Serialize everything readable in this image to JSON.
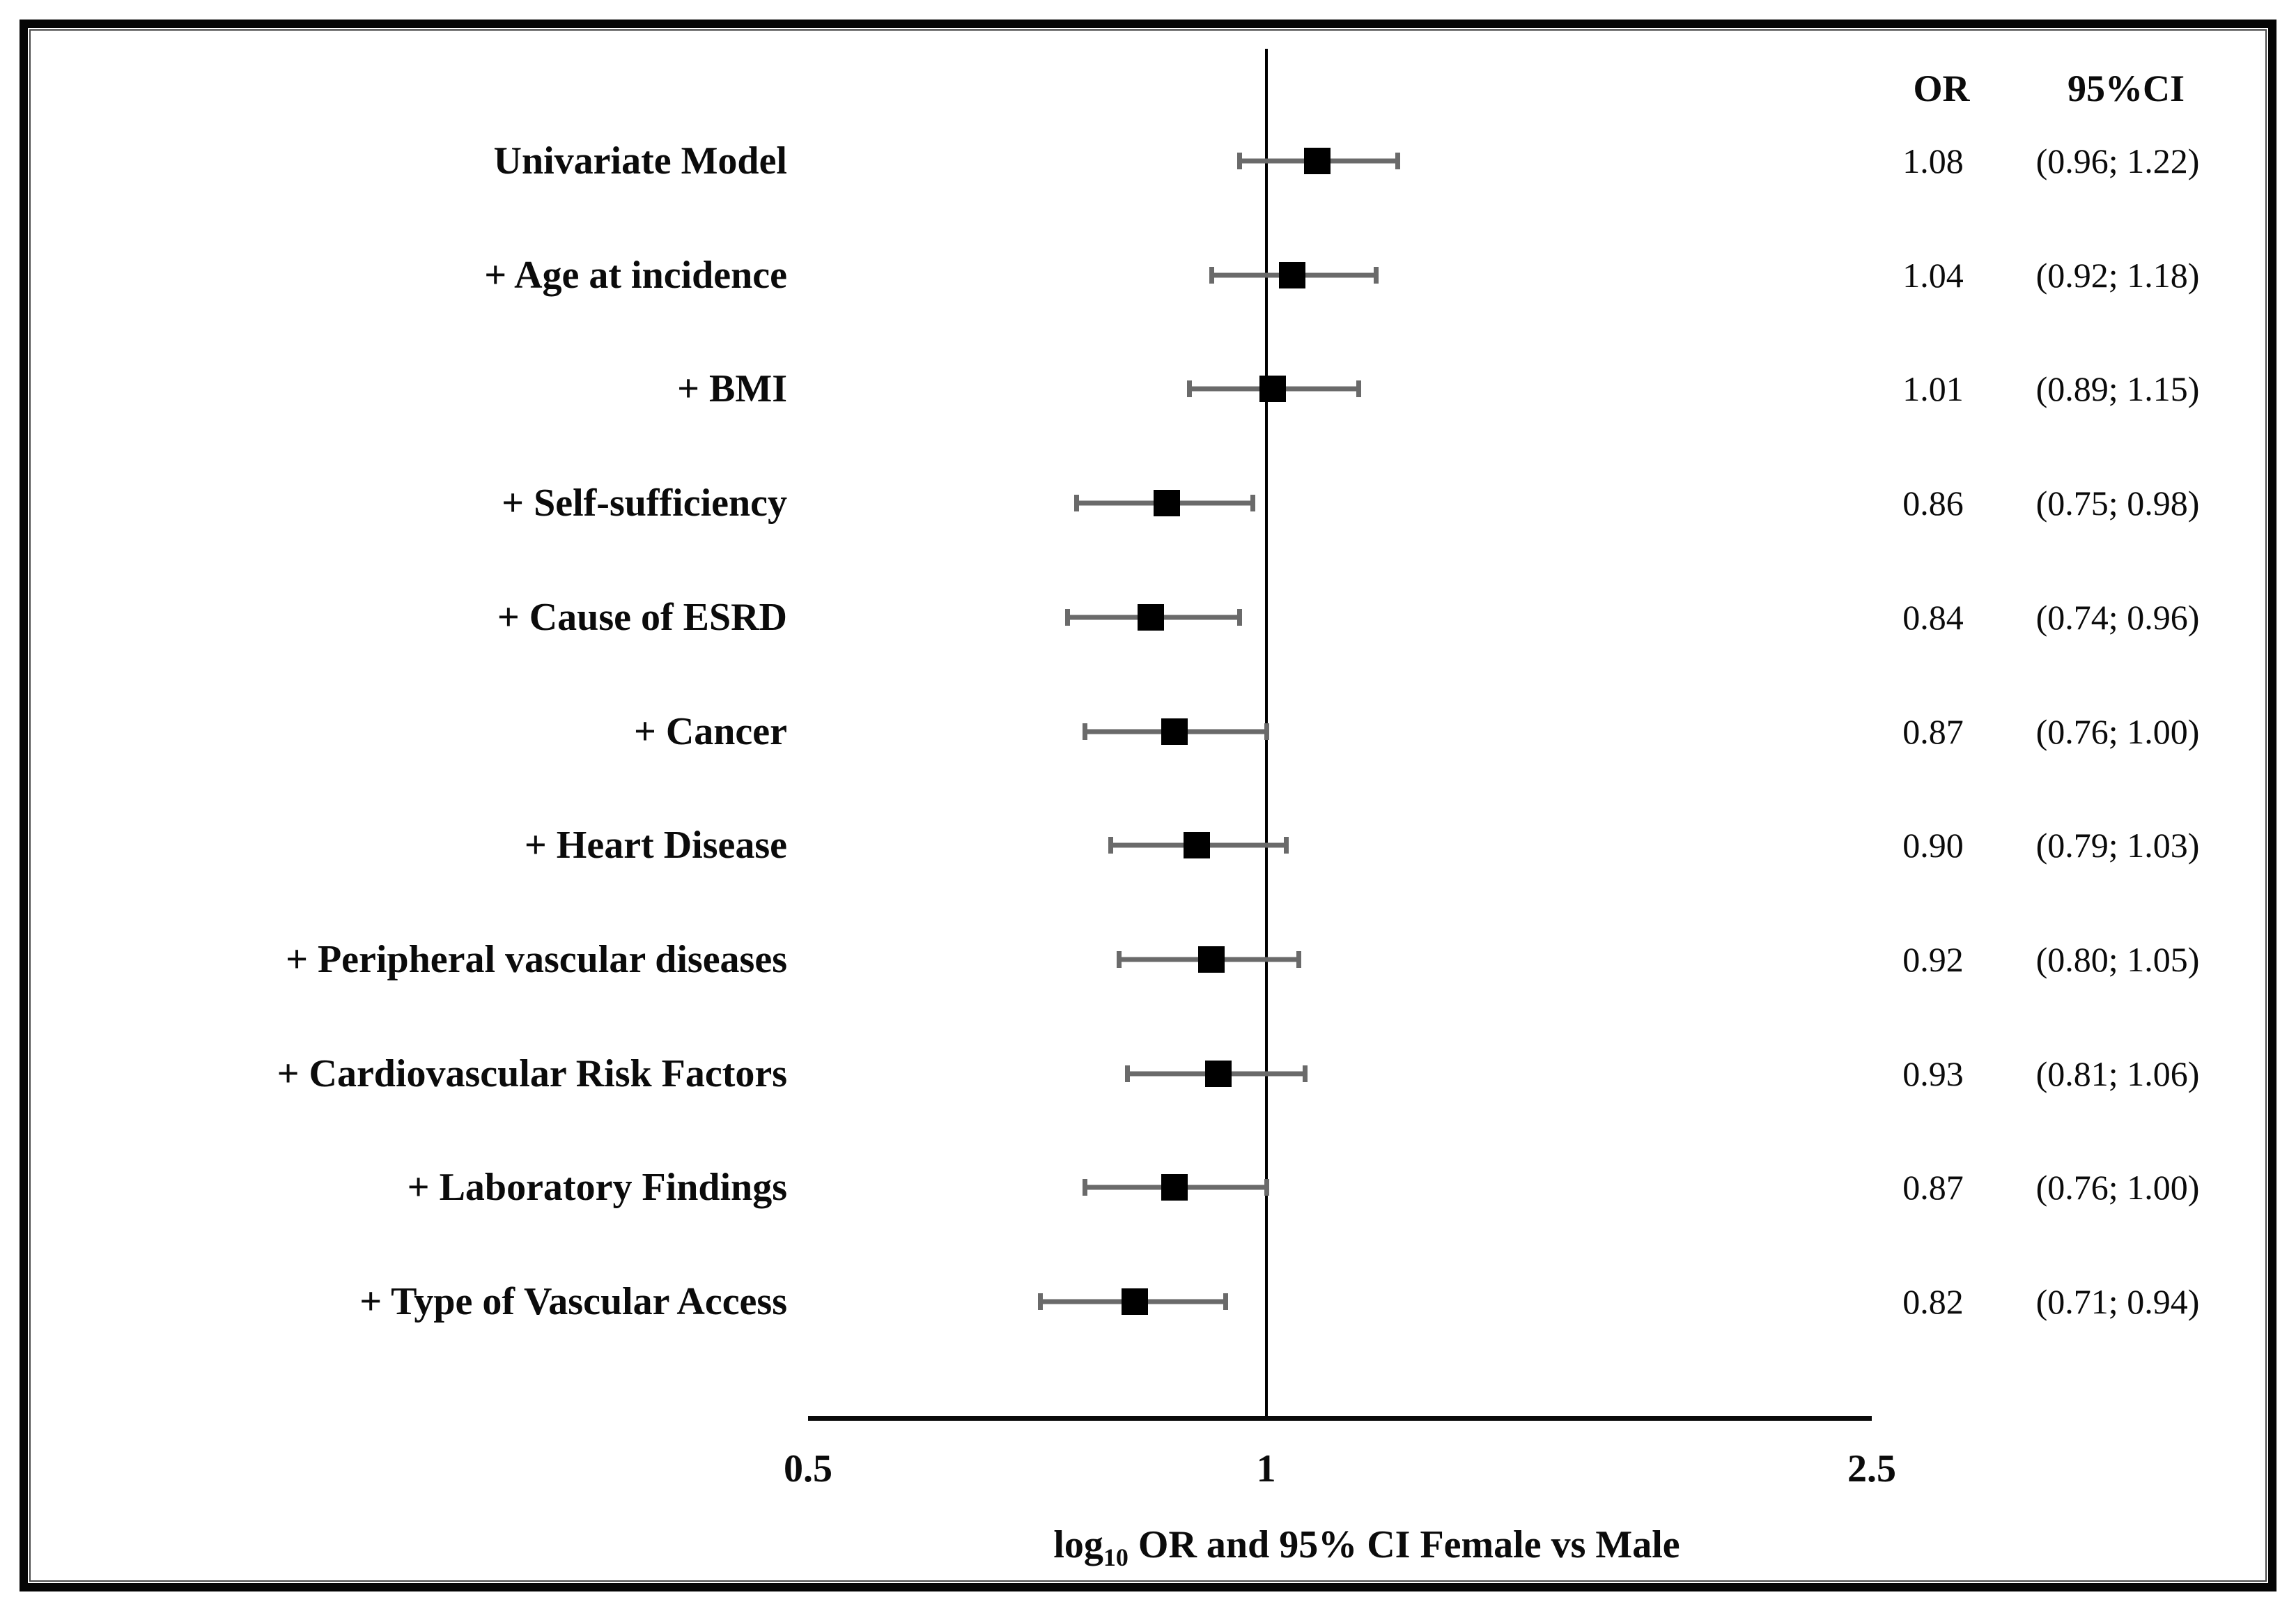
{
  "figure": {
    "kind": "forest-plot"
  },
  "chart_data": {
    "type": "scatter",
    "variant": "forest-plot",
    "column_headers": {
      "or": "OR",
      "ci": "95%CI"
    },
    "rows": [
      {
        "label": "Univariate Model",
        "or": 1.08,
        "ci_low": 0.96,
        "ci_high": 1.22,
        "or_text": "1.08",
        "ci_text": "(0.96; 1.22)"
      },
      {
        "label": "+ Age at incidence",
        "or": 1.04,
        "ci_low": 0.92,
        "ci_high": 1.18,
        "or_text": "1.04",
        "ci_text": "(0.92; 1.18)"
      },
      {
        "label": "+ BMI",
        "or": 1.01,
        "ci_low": 0.89,
        "ci_high": 1.15,
        "or_text": "1.01",
        "ci_text": "(0.89; 1.15)"
      },
      {
        "label": "+ Self-sufficiency",
        "or": 0.86,
        "ci_low": 0.75,
        "ci_high": 0.98,
        "or_text": "0.86",
        "ci_text": "(0.75; 0.98)"
      },
      {
        "label": "+ Cause of ESRD",
        "or": 0.84,
        "ci_low": 0.74,
        "ci_high": 0.96,
        "or_text": "0.84",
        "ci_text": "(0.74; 0.96)"
      },
      {
        "label": "+ Cancer",
        "or": 0.87,
        "ci_low": 0.76,
        "ci_high": 1.0,
        "or_text": "0.87",
        "ci_text": "(0.76; 1.00)"
      },
      {
        "label": "+ Heart Disease",
        "or": 0.9,
        "ci_low": 0.79,
        "ci_high": 1.03,
        "or_text": "0.90",
        "ci_text": "(0.79; 1.03)"
      },
      {
        "label": "+ Peripheral vascular diseases",
        "or": 0.92,
        "ci_low": 0.8,
        "ci_high": 1.05,
        "or_text": "0.92",
        "ci_text": "(0.80; 1.05)"
      },
      {
        "label": "+ Cardiovascular Risk Factors",
        "or": 0.93,
        "ci_low": 0.81,
        "ci_high": 1.06,
        "or_text": "0.93",
        "ci_text": "(0.81; 1.06)"
      },
      {
        "label": "+ Laboratory Findings",
        "or": 0.87,
        "ci_low": 0.76,
        "ci_high": 1.0,
        "or_text": "0.87",
        "ci_text": "(0.76; 1.00)"
      },
      {
        "label": "+ Type of Vascular Access",
        "or": 0.82,
        "ci_low": 0.71,
        "ci_high": 0.94,
        "or_text": "0.82",
        "ci_text": "(0.71; 0.94)"
      }
    ],
    "xscale": "log10",
    "xlim": [
      0.5,
      2.5
    ],
    "xticks": [
      {
        "value": 0.5,
        "label": "0.5"
      },
      {
        "value": 1,
        "label": "1"
      },
      {
        "value": 2.5,
        "label": "2.5"
      }
    ],
    "reference_line": 1,
    "xlabel": "log10 OR and 95% CI Female vs Male",
    "xlabel_parts": {
      "prefix": "log",
      "subscript": "10",
      "suffix": " OR and 95% CI Female vs Male"
    },
    "grid": false,
    "legend": "none",
    "colors": {
      "marker": "#000000",
      "whisker": "#6a6a6a",
      "axis": "#0a0a0a",
      "text": "#0b0b0b"
    }
  }
}
